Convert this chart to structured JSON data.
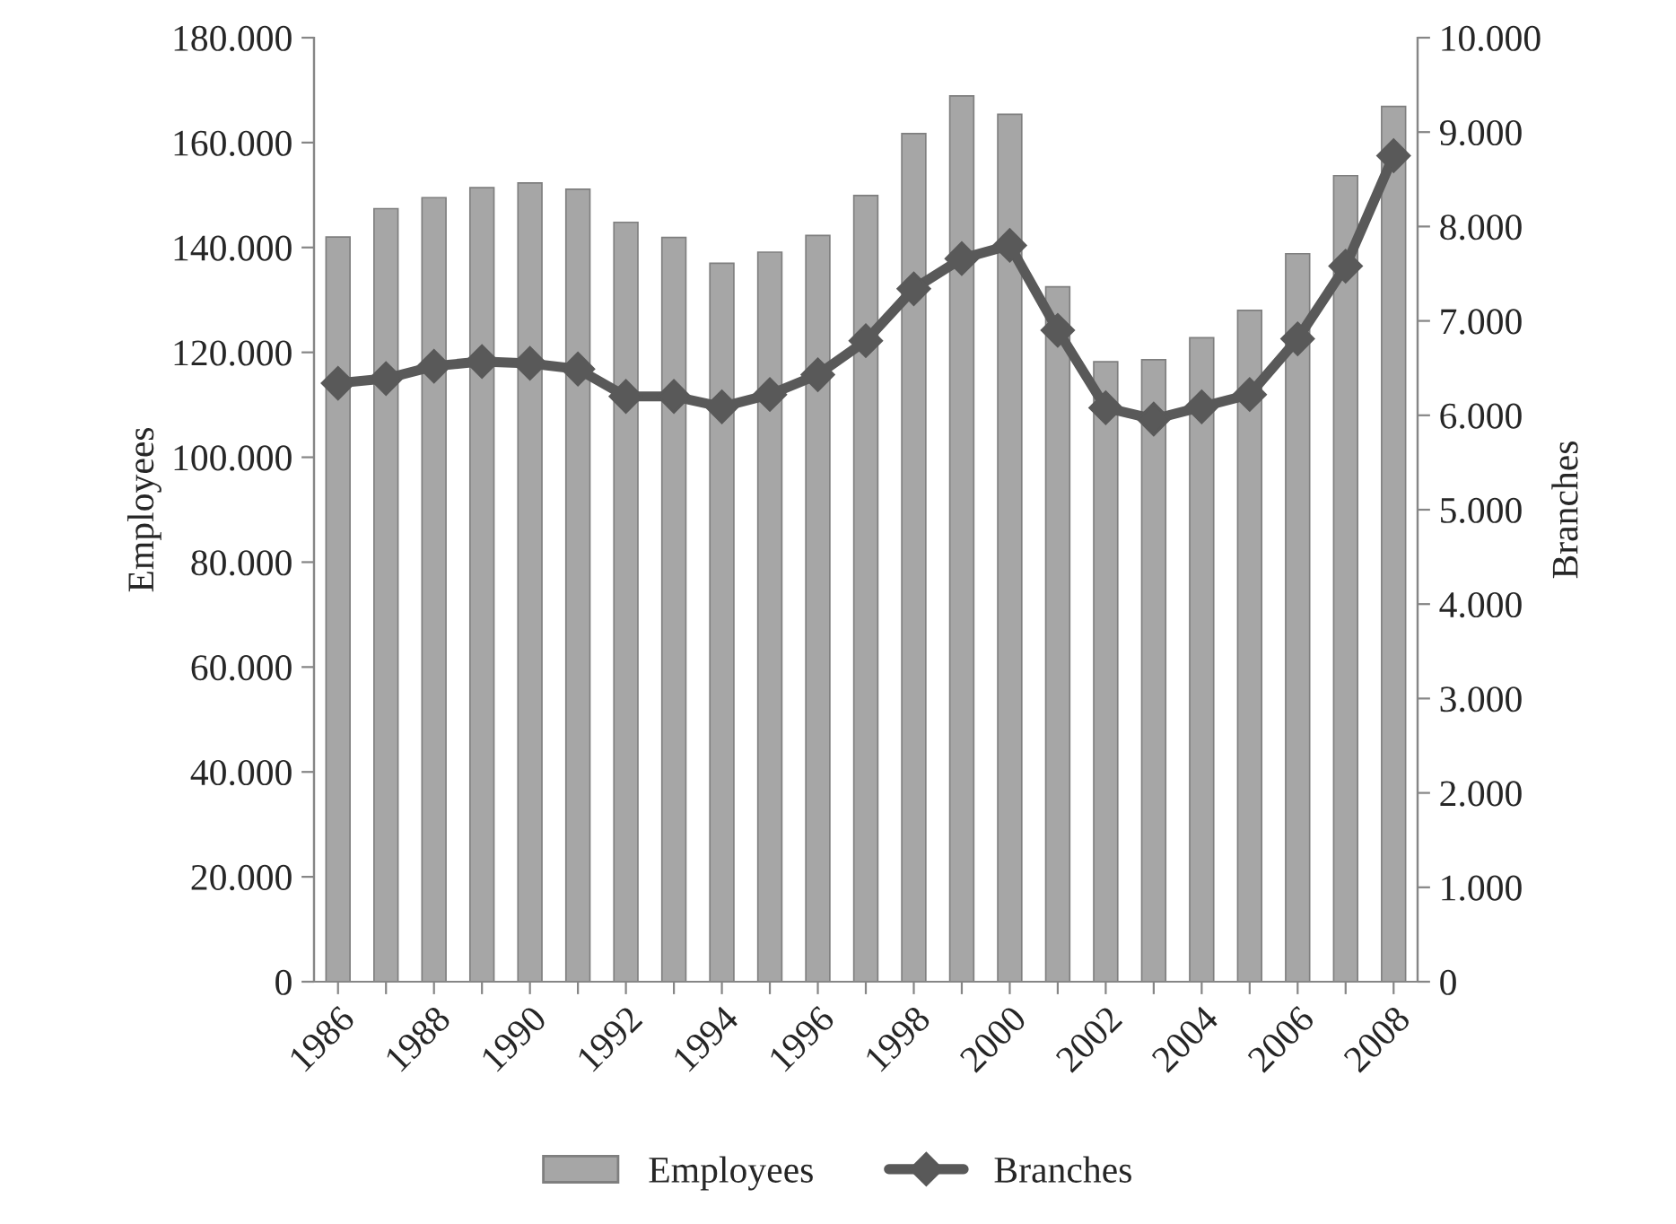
{
  "chart_data": {
    "type": "bar",
    "categories": [
      "1986",
      null,
      "1988",
      null,
      "1990",
      null,
      "1992",
      null,
      "1994",
      null,
      "1996",
      null,
      "1998",
      null,
      "2000",
      null,
      "2002",
      null,
      "2004",
      null,
      "2006",
      null,
      "2008"
    ],
    "ylabel": "Employees",
    "y2label": "Branches",
    "series": [
      {
        "name": "Employees",
        "color": "#a6a6a6",
        "values": [
          142000,
          147400,
          149500,
          151400,
          152300,
          151100,
          144800,
          141900,
          137000,
          139100,
          142300,
          149900,
          161700,
          168900,
          165400,
          132500,
          118200,
          118600,
          122800,
          128000,
          138800,
          153700,
          166900
        ]
      },
      {
        "name": "Branches",
        "type": "line",
        "axis": "y2",
        "color": "#595959",
        "marker": "diamond",
        "values": [
          6340,
          6390,
          6520,
          6570,
          6550,
          6490,
          6200,
          6200,
          6090,
          6220,
          6430,
          6790,
          7340,
          7660,
          7800,
          6900,
          6080,
          5960,
          6090,
          6220,
          6810,
          7580,
          8750
        ]
      }
    ],
    "ylim": [
      0,
      180000
    ],
    "yticks": [
      {
        "value": 0,
        "label": "0"
      },
      {
        "value": 20000,
        "label": "20.000"
      },
      {
        "value": 40000,
        "label": "40.000"
      },
      {
        "value": 60000,
        "label": "60.000"
      },
      {
        "value": 80000,
        "label": "80.000"
      },
      {
        "value": 100000,
        "label": "100.000"
      },
      {
        "value": 120000,
        "label": "120.000"
      },
      {
        "value": 140000,
        "label": "140.000"
      },
      {
        "value": 160000,
        "label": "160.000"
      },
      {
        "value": 180000,
        "label": "180.000"
      }
    ],
    "y2lim": [
      0,
      10000
    ],
    "y2ticks": [
      {
        "value": 0,
        "label": "0"
      },
      {
        "value": 1000,
        "label": "1.000"
      },
      {
        "value": 2000,
        "label": "2.000"
      },
      {
        "value": 3000,
        "label": "3.000"
      },
      {
        "value": 4000,
        "label": "4.000"
      },
      {
        "value": 5000,
        "label": "5.000"
      },
      {
        "value": 6000,
        "label": "6.000"
      },
      {
        "value": 7000,
        "label": "7.000"
      },
      {
        "value": 8000,
        "label": "8.000"
      },
      {
        "value": 9000,
        "label": "9.000"
      },
      {
        "value": 10000,
        "label": "10.000"
      }
    ],
    "grid": false,
    "legend": "bottom"
  }
}
